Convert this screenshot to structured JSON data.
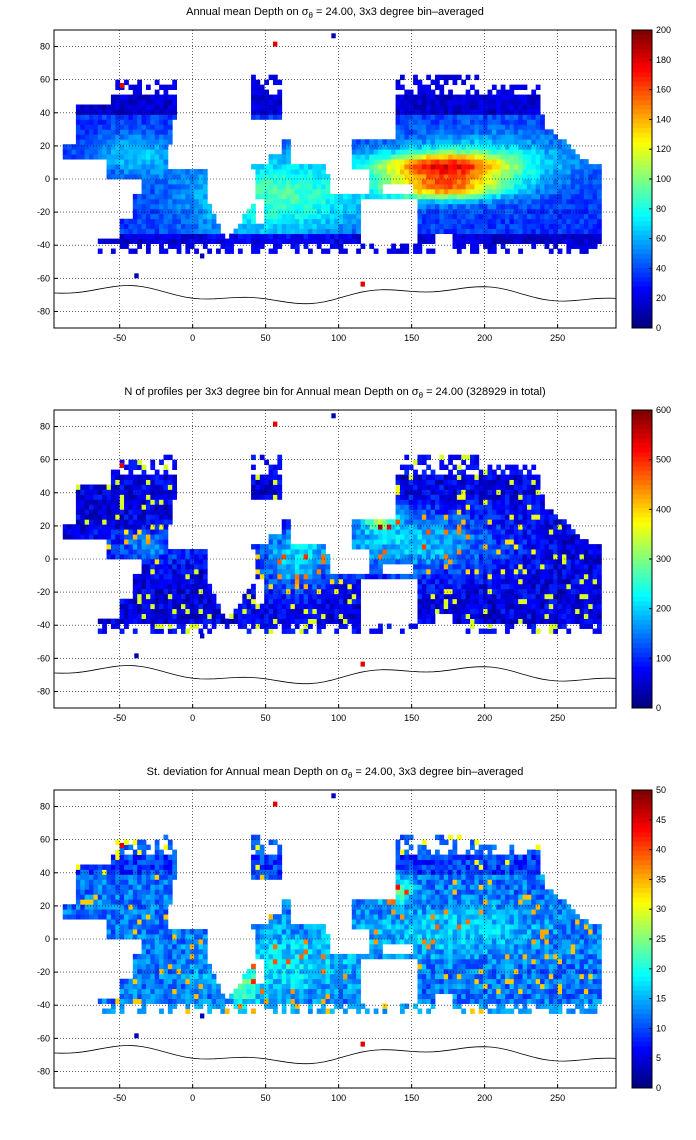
{
  "panels": [
    {
      "title_pre": "Annual mean Depth on σ",
      "title_sub": "θ",
      "title_post": " = 24.00, 3x3 degree bin–averaged",
      "colorbar": {
        "min": 0,
        "max": 200,
        "ticks": [
          "0",
          "20",
          "40",
          "60",
          "80",
          "100",
          "120",
          "140",
          "160",
          "180",
          "200"
        ]
      }
    },
    {
      "title_pre": "N of profiles per 3x3 degree bin for Annual mean Depth on σ",
      "title_sub": "θ",
      "title_post": " = 24.00 (328929 in total)",
      "colorbar": {
        "min": 0,
        "max": 600,
        "ticks": [
          "0",
          "100",
          "200",
          "300",
          "400",
          "500",
          "600"
        ]
      }
    },
    {
      "title_pre": "St. deviation for Annual mean Depth on σ",
      "title_sub": "θ",
      "title_post": " = 24.00, 3x3 degree bin–averaged",
      "colorbar": {
        "min": 0,
        "max": 50,
        "ticks": [
          "0",
          "5",
          "10",
          "15",
          "20",
          "25",
          "30",
          "35",
          "40",
          "45",
          "50"
        ]
      }
    }
  ],
  "axes": {
    "xlim": [
      -95,
      290
    ],
    "ylim": [
      -90,
      90
    ],
    "xticks": [
      "-50",
      "0",
      "50",
      "100",
      "150",
      "200",
      "250"
    ],
    "yticks": [
      "80",
      "60",
      "40",
      "20",
      "0",
      "-20",
      "-40",
      "-60",
      "-80"
    ]
  },
  "chart_data": [
    {
      "type": "heatmap",
      "field": "annual mean depth",
      "units_range": [
        0,
        200
      ],
      "grid": true,
      "colormap": "jet"
    },
    {
      "type": "heatmap",
      "field": "profile count",
      "units_range": [
        0,
        600
      ],
      "grid": true,
      "colormap": "jet",
      "total": 328929
    },
    {
      "type": "heatmap",
      "field": "standard deviation",
      "units_range": [
        0,
        50
      ],
      "grid": true,
      "colormap": "jet"
    }
  ]
}
